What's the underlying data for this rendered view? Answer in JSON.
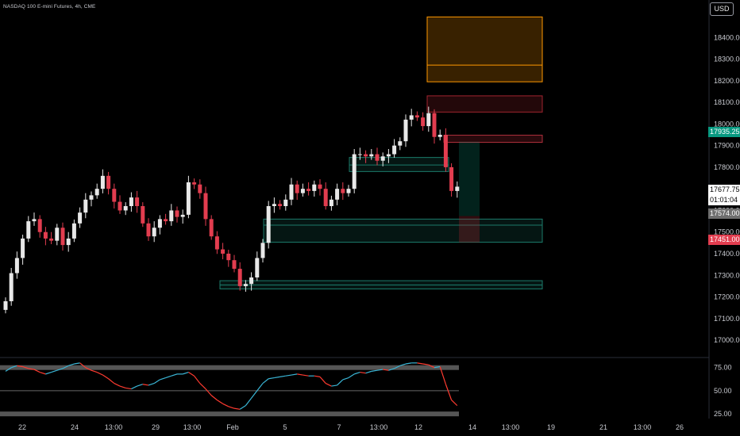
{
  "header": {
    "title": "NASDAQ 100 E-mini Futures, 4h, CME",
    "currency_button": "USD"
  },
  "colors": {
    "background": "#000000",
    "up_candle": "#e8e8e8",
    "down_candle": "#e23d4f",
    "supply_zone": "#ff9800",
    "bear_zone": "#a1242f",
    "demand_zone": "#1b7a6a",
    "rsi_line_up": "#3ab6d6",
    "rsi_line_down": "#ff3b30"
  },
  "price_labels": {
    "upper_marker": "17935.25",
    "current_price": "17677.75",
    "countdown": "01:01:04",
    "gray_marker": "17574.00",
    "red_marker": "17451.00"
  },
  "chart_data": [
    {
      "type": "candlestick",
      "title": "NASDAQ 100 E-mini Futures, 4h, CME",
      "y_axis": {
        "ticks": [
          17000,
          17100,
          17200,
          17300,
          17400,
          17500,
          17600,
          17700,
          17800,
          17900,
          18000,
          18100,
          18200,
          18300,
          18400
        ],
        "tick_labels": [
          "17000.00",
          "17100.00",
          "17200.00",
          "17300.00",
          "17400.00",
          "17500.00",
          "17600.00",
          "17700.00",
          "17800.00",
          "17900.00",
          "18000.00",
          "18100.00",
          "18200.00",
          "18300.00",
          "18400.00"
        ],
        "range": [
          16960,
          18500
        ]
      },
      "x_axis": {
        "tick_labels": [
          "22",
          "24",
          "13:00",
          "29",
          "13:00",
          "Feb",
          "5",
          "7",
          "13:00",
          "12",
          "14",
          "13:00",
          "19",
          "21",
          "13:00",
          "26"
        ]
      },
      "close": [
        17180,
        17310,
        17380,
        17470,
        17550,
        17560,
        17500,
        17470,
        17460,
        17520,
        17440,
        17470,
        17540,
        17590,
        17650,
        17670,
        17700,
        17760,
        17700,
        17640,
        17600,
        17620,
        17660,
        17620,
        17540,
        17480,
        17520,
        17560,
        17550,
        17600,
        17570,
        17580,
        17730,
        17720,
        17680,
        17560,
        17480,
        17420,
        17400,
        17370,
        17330,
        17250,
        17260,
        17290,
        17380,
        17450,
        17620,
        17630,
        17620,
        17650,
        17720,
        17680,
        17700,
        17690,
        17720,
        17700,
        17620,
        17650,
        17700,
        17680,
        17700,
        17860,
        17860,
        17850,
        17860,
        17830,
        17850,
        17860,
        17900,
        17920,
        18020,
        18040,
        18030,
        17990,
        18050,
        17940,
        17950,
        17800,
        17690,
        17710
      ]
    },
    {
      "type": "line",
      "title": "",
      "y_axis": {
        "tick_labels": [
          "75.00",
          "50.00",
          "25.00"
        ],
        "ticks": [
          75,
          50,
          25
        ],
        "range": [
          20,
          85
        ]
      },
      "values": [
        71,
        75,
        77,
        76,
        74,
        73,
        70,
        68,
        70,
        72,
        74,
        77,
        79,
        80,
        75,
        72,
        70,
        67,
        63,
        58,
        55,
        53,
        52,
        55,
        57,
        56,
        58,
        62,
        64,
        66,
        68,
        68,
        70,
        66,
        58,
        52,
        45,
        40,
        36,
        33,
        31,
        30,
        34,
        42,
        50,
        58,
        63,
        64,
        65,
        66,
        67,
        68,
        67,
        66,
        66,
        65,
        58,
        55,
        56,
        62,
        64,
        68,
        70,
        69,
        71,
        72,
        73,
        72,
        74,
        77,
        79,
        80,
        80,
        79,
        78,
        75,
        76,
        57,
        40,
        34
      ]
    }
  ]
}
